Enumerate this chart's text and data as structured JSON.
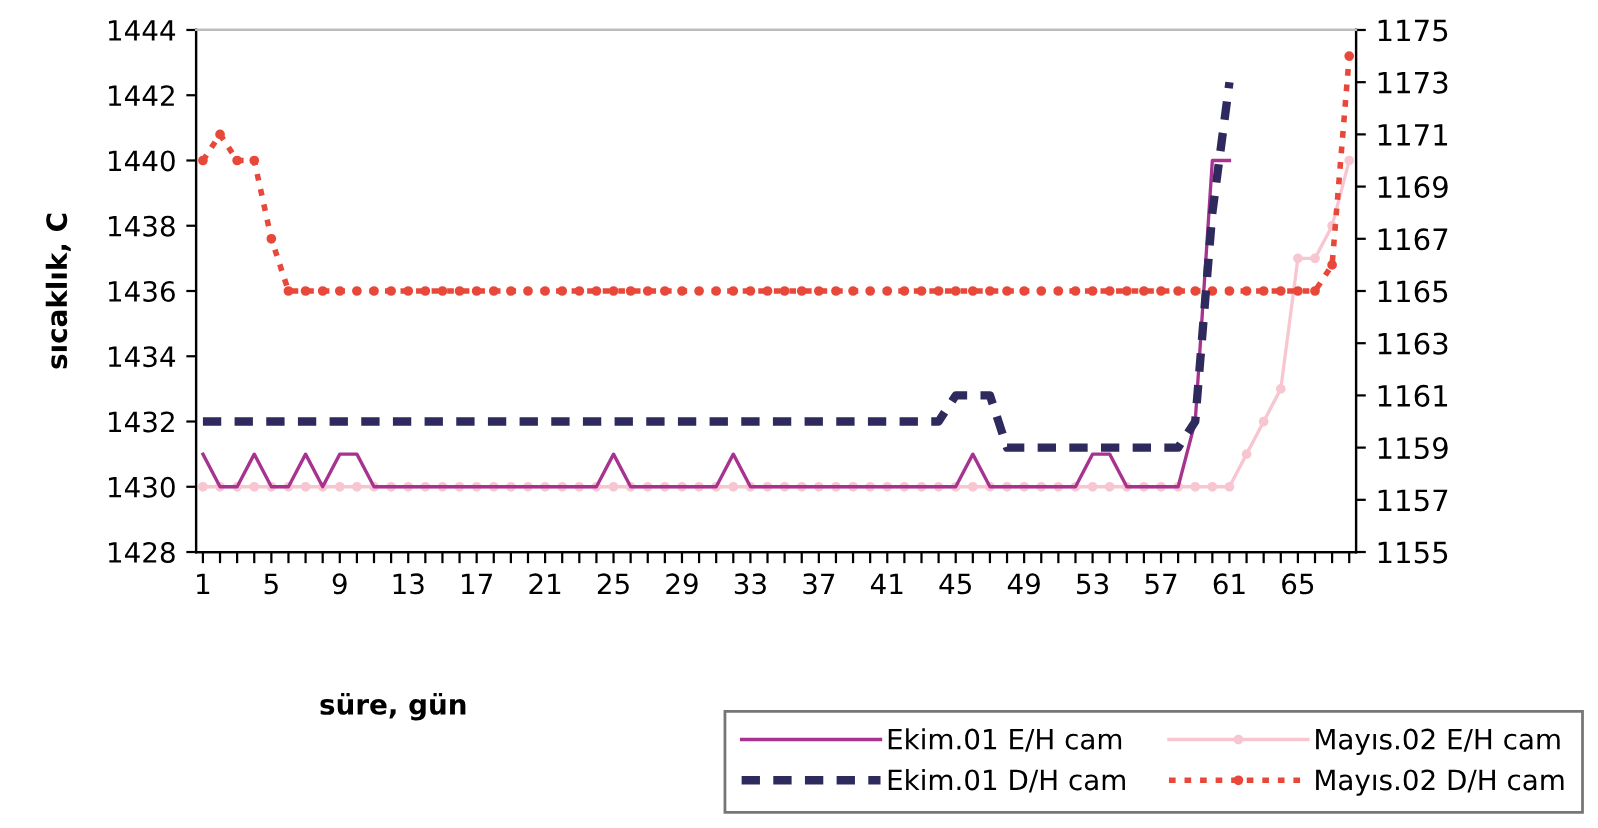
{
  "chart_data": {
    "type": "line",
    "xlabel": "süre, gün",
    "ylabel": "sıcaklık, C",
    "categories": [
      "1",
      null,
      null,
      null,
      "5",
      null,
      null,
      null,
      "9",
      null,
      null,
      null,
      "13",
      null,
      null,
      null,
      "17",
      null,
      null,
      null,
      "21",
      null,
      null,
      null,
      "25",
      null,
      null,
      null,
      "29",
      null,
      null,
      null,
      "33",
      null,
      null,
      null,
      "37",
      null,
      null,
      null,
      "41",
      null,
      null,
      null,
      "45",
      null,
      null,
      null,
      "49",
      null,
      null,
      null,
      "53",
      null,
      null,
      null,
      "57",
      null,
      null,
      null,
      "61",
      null,
      null,
      null,
      "65",
      null,
      null,
      null
    ],
    "ylim": [
      1428,
      1444
    ],
    "yticks": [
      1428,
      1430,
      1432,
      1434,
      1436,
      1438,
      1440,
      1442,
      1444
    ],
    "y2lim": [
      1155,
      1175
    ],
    "y2ticks": [
      1155,
      1157,
      1159,
      1161,
      1163,
      1165,
      1167,
      1169,
      1171,
      1173,
      1175
    ],
    "grid": false,
    "legend": "bottom right",
    "series": [
      {
        "name": "Ekim.01 E/H cam",
        "color": "#a8328f",
        "line_style": "solid",
        "marker": "none",
        "values": [
          1431,
          1430,
          1430,
          1431,
          1430,
          1430,
          1431,
          1430,
          1431,
          1431,
          1430,
          1430,
          1430,
          1430,
          1430,
          1430,
          1430,
          1430,
          1430,
          1430,
          1430,
          1430,
          1430,
          1430,
          1431,
          1430,
          1430,
          1430,
          1430,
          1430,
          1430,
          1431,
          1430,
          1430,
          1430,
          1430,
          1430,
          1430,
          1430,
          1430,
          1430,
          1430,
          1430,
          1430,
          1430,
          1431,
          1430,
          1430,
          1430,
          1430,
          1430,
          1430,
          1431,
          1431,
          1430,
          1430,
          1430,
          1430,
          1432,
          1440,
          1440,
          null,
          null,
          null,
          null,
          null,
          null,
          null
        ]
      },
      {
        "name": "Mayıs.02 E/H cam",
        "color": "#f7c6d0",
        "line_style": "solid",
        "marker": "circle",
        "values": [
          1430,
          1430,
          1430,
          1430,
          1430,
          1430,
          1430,
          1430,
          1430,
          1430,
          1430,
          1430,
          1430,
          1430,
          1430,
          1430,
          1430,
          1430,
          1430,
          1430,
          1430,
          1430,
          1430,
          1430,
          1430,
          1430,
          1430,
          1430,
          1430,
          1430,
          1430,
          1430,
          1430,
          1430,
          1430,
          1430,
          1430,
          1430,
          1430,
          1430,
          1430,
          1430,
          1430,
          1430,
          1430,
          1430,
          1430,
          1430,
          1430,
          1430,
          1430,
          1430,
          1430,
          1430,
          1430,
          1430,
          1430,
          1430,
          1430,
          1430,
          1430,
          1431,
          1432,
          1433,
          1437,
          1437,
          1438,
          1440
        ]
      },
      {
        "name": "Ekim.01 D/H cam",
        "color": "#2e2a5e",
        "line_style": "dashed",
        "marker": "none",
        "axis": "y2",
        "values": [
          1160,
          1160,
          1160,
          1160,
          1160,
          1160,
          1160,
          1160,
          1160,
          1160,
          1160,
          1160,
          1160,
          1160,
          1160,
          1160,
          1160,
          1160,
          1160,
          1160,
          1160,
          1160,
          1160,
          1160,
          1160,
          1160,
          1160,
          1160,
          1160,
          1160,
          1160,
          1160,
          1160,
          1160,
          1160,
          1160,
          1160,
          1160,
          1160,
          1160,
          1160,
          1160,
          1160,
          1160,
          1161,
          1161,
          1161,
          1159,
          1159,
          1159,
          1159,
          1159,
          1159,
          1159,
          1159,
          1159,
          1159,
          1159,
          1160,
          1168,
          1173,
          null,
          null,
          null,
          null,
          null,
          null,
          null
        ]
      },
      {
        "name": "Mayıs.02 D/H cam",
        "color": "#e8483a",
        "line_style": "dotted",
        "marker": "circle",
        "axis": "y2",
        "values": [
          1170,
          1171,
          1170,
          1170,
          1167,
          1165,
          1165,
          1165,
          1165,
          1165,
          1165,
          1165,
          1165,
          1165,
          1165,
          1165,
          1165,
          1165,
          1165,
          1165,
          1165,
          1165,
          1165,
          1165,
          1165,
          1165,
          1165,
          1165,
          1165,
          1165,
          1165,
          1165,
          1165,
          1165,
          1165,
          1165,
          1165,
          1165,
          1165,
          1165,
          1165,
          1165,
          1165,
          1165,
          1165,
          1165,
          1165,
          1165,
          1165,
          1165,
          1165,
          1165,
          1165,
          1165,
          1165,
          1165,
          1165,
          1165,
          1165,
          1165,
          1165,
          1165,
          1165,
          1165,
          1165,
          1165,
          1166,
          1174
        ]
      }
    ]
  }
}
